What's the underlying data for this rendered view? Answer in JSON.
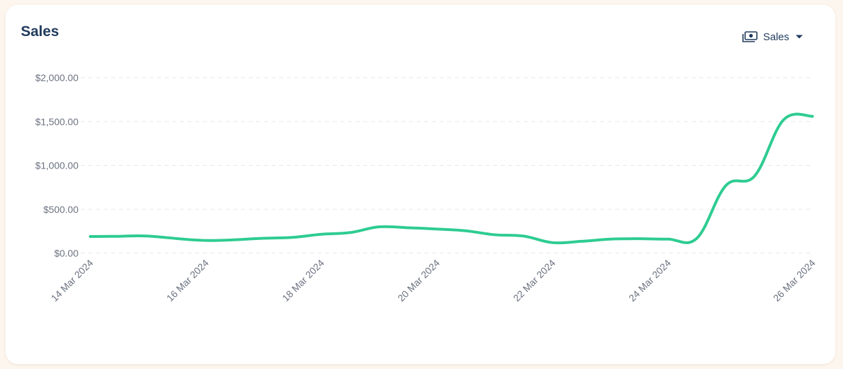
{
  "card": {
    "title": "Sales"
  },
  "dropdown": {
    "icon": "cash-icon",
    "selected": "Sales"
  },
  "colors": {
    "line": "#2ecc91",
    "title": "#1f3a5c",
    "grid": "#e5e7eb",
    "tick": "#6b7280"
  },
  "chart_data": {
    "type": "line",
    "title": "Sales",
    "xlabel": "",
    "ylabel": "",
    "ylim": [
      0,
      2000
    ],
    "yticks": [
      0,
      500,
      1000,
      1500,
      2000
    ],
    "ytick_labels": [
      "$0.00",
      "$500.00",
      "$1,000.00",
      "$1,500.00",
      "$2,000.00"
    ],
    "xtick_labels": [
      "14 Mar 2024",
      "16 Mar 2024",
      "18 Mar 2024",
      "20 Mar 2024",
      "22 Mar 2024",
      "24 Mar 2024",
      "26 Mar 2024"
    ],
    "grid": "horizontal-dashed",
    "x": [
      "2024-03-14",
      "2024-03-14",
      "2024-03-15",
      "2024-03-16",
      "2024-03-17",
      "2024-03-17",
      "2024-03-18",
      "2024-03-18",
      "2024-03-19",
      "2024-03-19",
      "2024-03-20",
      "2024-03-20",
      "2024-03-21",
      "2024-03-21",
      "2024-03-22",
      "2024-03-22",
      "2024-03-23",
      "2024-03-23",
      "2024-03-24",
      "2024-03-24",
      "2024-03-25",
      "2024-03-25",
      "2024-03-26",
      "2024-03-26"
    ],
    "x_hours": [
      0,
      12,
      0,
      0,
      0,
      12,
      0,
      12,
      0,
      12,
      0,
      12,
      0,
      12,
      0,
      12,
      0,
      12,
      0,
      12,
      0,
      12,
      0,
      12
    ],
    "series": [
      {
        "values": [
          190,
          192,
          195,
          145,
          170,
          180,
          215,
          235,
          300,
          290,
          275,
          255,
          210,
          195,
          120,
          135,
          160,
          165,
          160,
          170,
          770,
          880,
          1520,
          1560
        ]
      }
    ]
  }
}
